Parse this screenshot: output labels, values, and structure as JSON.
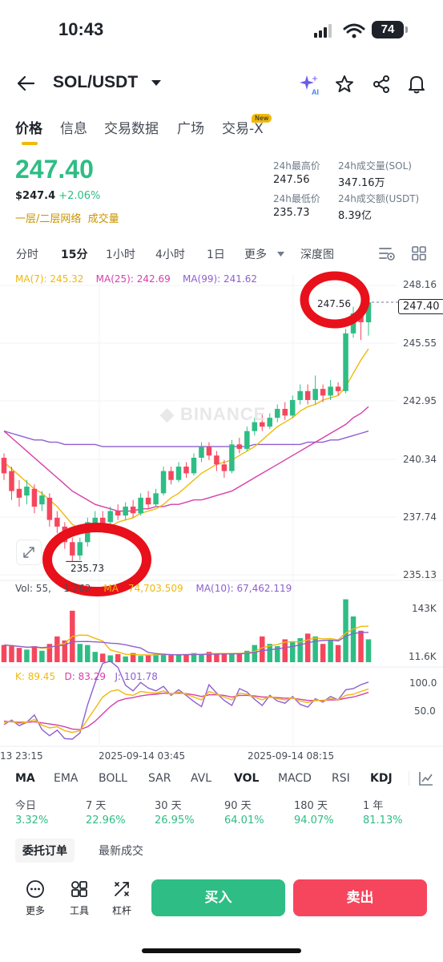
{
  "status_bar": {
    "time": "10:43",
    "battery": "74"
  },
  "header": {
    "pair": "SOL/USDT"
  },
  "tabs": [
    {
      "label": "价格"
    },
    {
      "label": "信息"
    },
    {
      "label": "交易数据"
    },
    {
      "label": "广场"
    },
    {
      "label": "交易-X"
    }
  ],
  "new_badge": "New",
  "ticker": {
    "last_price": "247.40",
    "fiat_price": "$247.4",
    "change_pct": "+2.06%",
    "network_label": "一层/二层网络",
    "volume_label": "成交量",
    "high_label": "24h最高价",
    "high_value": "247.56",
    "vol_sol_label": "24h成交量(SOL)",
    "vol_sol_value": "347.16万",
    "low_label": "24h最低价",
    "low_value": "235.73",
    "vol_usdt_label": "24h成交额(USDT)",
    "vol_usdt_value": "8.39亿"
  },
  "intervals": [
    {
      "label": "分时"
    },
    {
      "label": "15分"
    },
    {
      "label": "1小时"
    },
    {
      "label": "4小时"
    },
    {
      "label": "1日"
    },
    {
      "label": "更多"
    },
    {
      "label": "深度图"
    }
  ],
  "ma_legend": {
    "ma7": "MA(7): 245.32",
    "ma25": "MA(25): 242.69",
    "ma99": "MA(99): 241.62"
  },
  "price_axis": [
    "248.16",
    "245.55",
    "242.95",
    "240.34",
    "237.74",
    "235.13"
  ],
  "current_price_tag": "247.40",
  "annotations": {
    "high": "247.56",
    "low": "235.73"
  },
  "watermark": "BINANCE",
  "vol_legend": {
    "vol": "Vol: 55,",
    "vol_b": "1.262",
    "ma5": "MA",
    "ma5_b": "74,703.509",
    "ma10": "MA(10): 67,462.119"
  },
  "vol_axis": [
    "143K",
    "11.6K"
  ],
  "kdj_legend": {
    "k": "K: 89.45",
    "d": "D: 83.29",
    "j": "J: 101.78"
  },
  "kdj_axis": [
    "100.0",
    "50.0"
  ],
  "time_axis": [
    "13 23:15",
    "2025-09-14 03:45",
    "2025-09-14 08:15"
  ],
  "indicator_tabs": [
    {
      "label": "MA"
    },
    {
      "label": "EMA"
    },
    {
      "label": "BOLL"
    },
    {
      "label": "SAR"
    },
    {
      "label": "AVL"
    },
    {
      "label": "VOL"
    },
    {
      "label": "MACD"
    },
    {
      "label": "RSI"
    },
    {
      "label": "KDJ"
    }
  ],
  "performance": [
    {
      "label": "今日",
      "value": "3.32%"
    },
    {
      "label": "7 天",
      "value": "22.96%"
    },
    {
      "label": "30 天",
      "value": "26.95%"
    },
    {
      "label": "90 天",
      "value": "64.01%"
    },
    {
      "label": "180 天",
      "value": "94.07%"
    },
    {
      "label": "1 年",
      "value": "81.13%"
    }
  ],
  "order_tabs": {
    "orders": "委托订单",
    "trades": "最新成交"
  },
  "toolbar": {
    "more": "更多",
    "tools": "工具",
    "leverage": "杠杆",
    "buy": "买入",
    "sell": "卖出"
  },
  "colors": {
    "up": "#2ebd85",
    "down": "#f6465d",
    "accent": "#f0b90b",
    "ma7": "#f0b90b",
    "ma25": "#d63fa9",
    "ma99": "#8e5fd0"
  },
  "icons": [
    "back-arrow-icon",
    "dropdown-caret-icon",
    "ai-sparkle-icon",
    "star-icon",
    "share-icon",
    "bell-icon",
    "chart-settings-icon",
    "grid-icon",
    "expand-icon",
    "indicator-settings-icon",
    "more-dots-icon",
    "tools-icon",
    "leverage-icon"
  ],
  "candles": [
    {
      "o": 240.4,
      "c": 239.7,
      "h": 240.6,
      "l": 239.4
    },
    {
      "o": 239.8,
      "c": 238.9,
      "h": 240.0,
      "l": 238.5
    },
    {
      "o": 239.0,
      "c": 238.6,
      "h": 239.4,
      "l": 238.2
    },
    {
      "o": 238.7,
      "c": 239.1,
      "h": 239.4,
      "l": 238.3
    },
    {
      "o": 239.0,
      "c": 238.2,
      "h": 239.2,
      "l": 237.9
    },
    {
      "o": 238.3,
      "c": 238.7,
      "h": 238.9,
      "l": 238.0
    },
    {
      "o": 238.6,
      "c": 237.6,
      "h": 238.8,
      "l": 237.3
    },
    {
      "o": 237.7,
      "c": 237.3,
      "h": 238.0,
      "l": 237.0
    },
    {
      "o": 237.3,
      "c": 236.6,
      "h": 237.5,
      "l": 236.3
    },
    {
      "o": 236.6,
      "c": 236.0,
      "h": 236.8,
      "l": 235.73
    },
    {
      "o": 236.0,
      "c": 236.6,
      "h": 236.8,
      "l": 235.8
    },
    {
      "o": 236.6,
      "c": 237.5,
      "h": 237.7,
      "l": 236.4
    },
    {
      "o": 237.4,
      "c": 237.7,
      "h": 238.0,
      "l": 237.2
    },
    {
      "o": 237.7,
      "c": 237.4,
      "h": 238.0,
      "l": 237.2
    },
    {
      "o": 237.5,
      "c": 238.0,
      "h": 238.2,
      "l": 237.3
    },
    {
      "o": 238.0,
      "c": 237.8,
      "h": 238.3,
      "l": 237.6
    },
    {
      "o": 237.8,
      "c": 238.2,
      "h": 238.4,
      "l": 237.6
    },
    {
      "o": 238.2,
      "c": 237.9,
      "h": 238.5,
      "l": 237.7
    },
    {
      "o": 237.9,
      "c": 238.6,
      "h": 238.8,
      "l": 237.8
    },
    {
      "o": 238.6,
      "c": 238.3,
      "h": 238.9,
      "l": 238.1
    },
    {
      "o": 238.3,
      "c": 238.8,
      "h": 239.0,
      "l": 238.2
    },
    {
      "o": 238.8,
      "c": 239.8,
      "h": 240.0,
      "l": 238.7
    },
    {
      "o": 239.8,
      "c": 239.4,
      "h": 240.0,
      "l": 239.2
    },
    {
      "o": 239.4,
      "c": 240.0,
      "h": 240.2,
      "l": 239.3
    },
    {
      "o": 240.0,
      "c": 239.7,
      "h": 240.2,
      "l": 239.5
    },
    {
      "o": 239.7,
      "c": 240.4,
      "h": 240.6,
      "l": 239.6
    },
    {
      "o": 240.4,
      "c": 240.9,
      "h": 241.1,
      "l": 240.2
    },
    {
      "o": 240.9,
      "c": 240.5,
      "h": 241.1,
      "l": 240.3
    },
    {
      "o": 240.5,
      "c": 240.1,
      "h": 240.7,
      "l": 239.8
    },
    {
      "o": 240.1,
      "c": 239.8,
      "h": 240.3,
      "l": 239.5
    },
    {
      "o": 239.8,
      "c": 241.0,
      "h": 241.2,
      "l": 239.7
    },
    {
      "o": 241.0,
      "c": 240.8,
      "h": 241.3,
      "l": 240.6
    },
    {
      "o": 240.8,
      "c": 241.6,
      "h": 241.8,
      "l": 240.7
    },
    {
      "o": 241.6,
      "c": 242.0,
      "h": 242.2,
      "l": 241.4
    },
    {
      "o": 242.0,
      "c": 241.8,
      "h": 242.4,
      "l": 241.6
    },
    {
      "o": 241.8,
      "c": 242.2,
      "h": 242.4,
      "l": 241.7
    },
    {
      "o": 242.2,
      "c": 242.6,
      "h": 242.8,
      "l": 242.0
    },
    {
      "o": 242.6,
      "c": 242.3,
      "h": 242.9,
      "l": 242.1
    },
    {
      "o": 242.3,
      "c": 243.0,
      "h": 243.2,
      "l": 242.2
    },
    {
      "o": 243.0,
      "c": 243.4,
      "h": 243.7,
      "l": 242.8
    },
    {
      "o": 243.4,
      "c": 243.0,
      "h": 243.7,
      "l": 242.8
    },
    {
      "o": 243.0,
      "c": 243.5,
      "h": 244.1,
      "l": 242.8
    },
    {
      "o": 243.5,
      "c": 243.2,
      "h": 243.7,
      "l": 242.9
    },
    {
      "o": 243.2,
      "c": 243.6,
      "h": 243.9,
      "l": 243.0
    },
    {
      "o": 243.6,
      "c": 243.4,
      "h": 243.8,
      "l": 243.2
    },
    {
      "o": 243.4,
      "c": 246.0,
      "h": 246.2,
      "l": 243.3
    },
    {
      "o": 246.0,
      "c": 246.9,
      "h": 247.2,
      "l": 245.8
    },
    {
      "o": 246.9,
      "c": 246.5,
      "h": 247.3,
      "l": 245.7
    },
    {
      "o": 246.5,
      "c": 247.4,
      "h": 247.56,
      "l": 245.9
    }
  ],
  "ma7_line": [
    240.2,
    239.9,
    239.6,
    239.3,
    239.0,
    238.8,
    238.5,
    238.2,
    237.8,
    237.4,
    237.2,
    237.1,
    237.1,
    237.1,
    237.3,
    237.5,
    237.6,
    237.7,
    237.9,
    238.0,
    238.1,
    238.3,
    238.6,
    238.8,
    239.1,
    239.4,
    239.7,
    239.9,
    240.1,
    240.2,
    240.3,
    240.5,
    240.7,
    240.9,
    241.2,
    241.5,
    241.8,
    242.0,
    242.2,
    242.5,
    242.7,
    242.8,
    243.0,
    243.1,
    243.2,
    243.6,
    244.2,
    244.8,
    245.3
  ],
  "ma25_line": [
    241.6,
    241.3,
    241.0,
    240.7,
    240.4,
    240.1,
    239.8,
    239.5,
    239.2,
    238.9,
    238.7,
    238.5,
    238.3,
    238.2,
    238.1,
    238.0,
    238.0,
    238.0,
    238.1,
    238.1,
    238.2,
    238.2,
    238.3,
    238.3,
    238.4,
    238.5,
    238.5,
    238.6,
    238.7,
    238.8,
    238.9,
    239.1,
    239.3,
    239.5,
    239.7,
    239.9,
    240.1,
    240.3,
    240.5,
    240.7,
    240.9,
    241.1,
    241.3,
    241.5,
    241.7,
    241.9,
    242.2,
    242.4,
    242.7
  ],
  "ma99_line": [
    241.6,
    241.5,
    241.4,
    241.3,
    241.2,
    241.2,
    241.1,
    241.1,
    241.0,
    241.0,
    241.0,
    241.0,
    241.0,
    240.9,
    240.9,
    240.9,
    240.9,
    240.9,
    240.9,
    240.9,
    240.9,
    240.9,
    240.9,
    240.9,
    240.9,
    240.9,
    240.9,
    240.9,
    240.9,
    240.9,
    240.9,
    240.9,
    240.9,
    241.0,
    241.0,
    241.0,
    241.0,
    241.0,
    241.0,
    241.0,
    241.1,
    241.1,
    241.1,
    241.2,
    241.2,
    241.3,
    241.4,
    241.5,
    241.6
  ],
  "volumes": [
    30,
    28,
    25,
    22,
    28,
    20,
    32,
    45,
    38,
    90,
    32,
    30,
    18,
    15,
    12,
    14,
    10,
    16,
    11,
    12,
    14,
    15,
    13,
    12,
    14,
    16,
    13,
    18,
    15,
    14,
    16,
    15,
    20,
    30,
    45,
    32,
    28,
    40,
    35,
    42,
    50,
    45,
    32,
    38,
    30,
    110,
    80,
    55,
    40
  ],
  "kdj_k": [
    30,
    32,
    28,
    30,
    35,
    25,
    20,
    22,
    15,
    12,
    15,
    35,
    55,
    75,
    85,
    88,
    80,
    78,
    85,
    83,
    82,
    86,
    80,
    84,
    80,
    75,
    70,
    85,
    80,
    75,
    70,
    82,
    80,
    75,
    70,
    76,
    72,
    70,
    74,
    68,
    65,
    70,
    68,
    72,
    70,
    78,
    80,
    85,
    89.45
  ],
  "kdj_d": [
    32,
    31,
    30,
    30,
    31,
    29,
    27,
    25,
    22,
    18,
    17,
    22,
    32,
    45,
    58,
    68,
    72,
    74,
    77,
    79,
    80,
    82,
    81,
    82,
    81,
    79,
    76,
    79,
    79,
    78,
    75,
    78,
    78,
    77,
    75,
    75,
    74,
    73,
    73,
    71,
    69,
    69,
    69,
    70,
    70,
    73,
    75,
    79,
    83.29
  ],
  "kdj_j": [
    26,
    34,
    24,
    30,
    43,
    17,
    6,
    16,
    1,
    0,
    11,
    61,
    101,
    135,
    139,
    128,
    96,
    86,
    101,
    91,
    86,
    94,
    78,
    88,
    78,
    67,
    58,
    97,
    82,
    69,
    60,
    90,
    84,
    71,
    60,
    78,
    68,
    64,
    76,
    62,
    57,
    72,
    66,
    76,
    70,
    88,
    90,
    97,
    101.78
  ]
}
